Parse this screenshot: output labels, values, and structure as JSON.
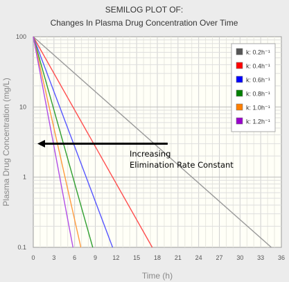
{
  "chart_data": {
    "type": "line",
    "title": "SEMILOG PLOT OF:",
    "subtitle": "Changes In Plasma Drug Concentration Over Time",
    "xlabel": "Time  (h)",
    "ylabel": "Plasma Drug Concentration  (mg/L)",
    "xlim": [
      0,
      36
    ],
    "ylim": [
      0.1,
      100
    ],
    "y_scale": "log",
    "x_ticks": [
      0,
      3,
      6,
      9,
      12,
      15,
      18,
      21,
      24,
      27,
      30,
      33,
      36
    ],
    "y_ticks": [
      {
        "value": 100,
        "label": "100"
      },
      {
        "value": 10,
        "label": "10"
      },
      {
        "value": 1,
        "label": "1"
      },
      {
        "value": 0.1,
        "label": "0.1"
      }
    ],
    "grid": true,
    "legend_position": "top-right",
    "series": [
      {
        "name": "k: 0.2h⁻¹",
        "k": 0.2,
        "color": "#999999",
        "legend_color": "#555555",
        "x": [
          0,
          34.54
        ],
        "y": [
          100,
          0.1
        ]
      },
      {
        "name": "k: 0.4h⁻¹",
        "k": 0.4,
        "color": "#ff4d4d",
        "legend_color": "#ff0000",
        "x": [
          0,
          17.27
        ],
        "y": [
          100,
          0.1
        ]
      },
      {
        "name": "k: 0.6h⁻¹",
        "k": 0.6,
        "color": "#5555ff",
        "legend_color": "#0000ff",
        "x": [
          0,
          11.51
        ],
        "y": [
          100,
          0.1
        ]
      },
      {
        "name": "k: 0.8h⁻¹",
        "k": 0.8,
        "color": "#2e9e2e",
        "legend_color": "#008000",
        "x": [
          0,
          8.63
        ],
        "y": [
          100,
          0.1
        ]
      },
      {
        "name": "k: 1.0h⁻¹",
        "k": 1.0,
        "color": "#ff9a3c",
        "legend_color": "#ff7f00",
        "x": [
          0,
          6.91
        ],
        "y": [
          100,
          0.1
        ]
      },
      {
        "name": "k: 1.2h⁻¹",
        "k": 1.2,
        "color": "#b04ce6",
        "legend_color": "#9900cc",
        "x": [
          0,
          5.76
        ],
        "y": [
          100,
          0.1
        ]
      }
    ],
    "annotations": [
      {
        "text": [
          "Increasing",
          "Elimination Rate Constant"
        ],
        "arrow": {
          "from": [
            19.5,
            3
          ],
          "to": [
            0.6,
            3
          ]
        }
      }
    ]
  }
}
